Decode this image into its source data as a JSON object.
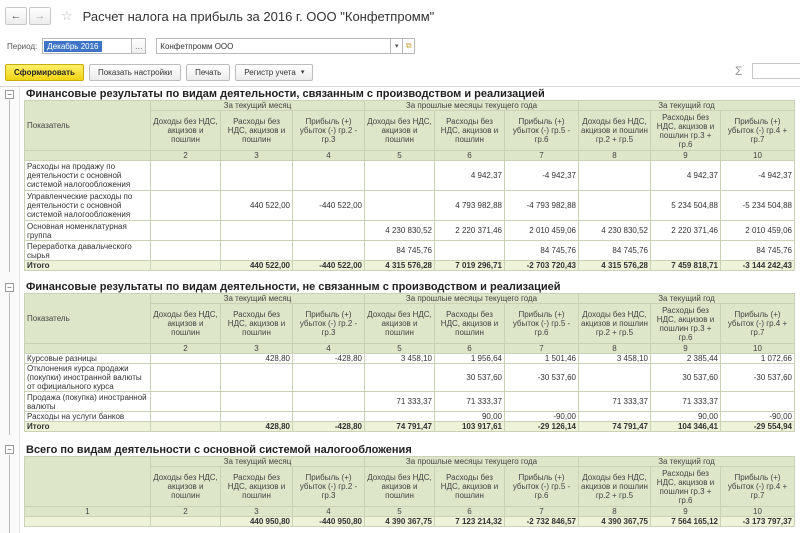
{
  "window": {
    "title": "Расчет налога на прибыль за 2016 г. ООО \"Конфетпромм\""
  },
  "filters": {
    "period_label": "Период:",
    "period_value": "Декабрь 2016",
    "organization_value": "Конфетпромм ООО"
  },
  "toolbar": {
    "generate": "Сформировать",
    "show_settings": "Показать настройки",
    "print": "Печать",
    "register": "Регистр учета",
    "sum_symbol": "Σ"
  },
  "columns": {
    "indicator": "Показатель",
    "current_month": "За текущий месяц",
    "past_months": "За прошлые месяцы текущего года",
    "current_year": "За текущий год",
    "income": "Доходы без НДС, акцизов и пошлин",
    "expenses": "Расходы без НДС, акцизов и пошлин",
    "profit_m": "Прибыль (+) убыток (-) гр.2 - гр.3",
    "profit_p": "Прибыль (+) убыток (-) гр.5 - гр.6",
    "income_y": "Доходы без НДС, акцизов и пошлин гр.2 + гр.5",
    "expenses_y": "Расходы без НДС, акцизов и пошлин гр.3 + гр.6",
    "profit_y": "Прибыль (+) убыток (-) гр.4 + гр.7",
    "nums": [
      "2",
      "3",
      "4",
      "5",
      "6",
      "7",
      "8",
      "9",
      "10"
    ],
    "num1": "1"
  },
  "section1": {
    "title": "Финансовые результаты по видам деятельности, связанным с производством и реализацией",
    "rows": [
      {
        "label": "Расходы на продажу по деятельности с основной системой налогообложения",
        "v": [
          "",
          "",
          "",
          "",
          "4 942,37",
          "-4 942,37",
          "",
          "4 942,37",
          "-4 942,37"
        ]
      },
      {
        "label": "Управленческие расходы по деятельности с основной системой налогообложения",
        "v": [
          "",
          "440 522,00",
          "-440 522,00",
          "",
          "4 793 982,88",
          "-4 793 982,88",
          "",
          "5 234 504,88",
          "-5 234 504,88"
        ]
      },
      {
        "label": "Основная номенклатурная группа",
        "v": [
          "",
          "",
          "",
          "4 230 830,52",
          "2 220 371,46",
          "2 010 459,06",
          "4 230 830,52",
          "2 220 371,46",
          "2 010 459,06"
        ]
      },
      {
        "label": "Переработка давальческого сырья",
        "v": [
          "",
          "",
          "",
          "84 745,76",
          "",
          "84 745,76",
          "84 745,76",
          "",
          "84 745,76"
        ]
      }
    ],
    "total": {
      "label": "Итого",
      "v": [
        "",
        "440 522,00",
        "-440 522,00",
        "4 315 576,28",
        "7 019 296,71",
        "-2 703 720,43",
        "4 315 576,28",
        "7 459 818,71",
        "-3 144 242,43"
      ]
    }
  },
  "section2": {
    "title": "Финансовые результаты по видам деятельности, не связанным с производством и реализацией",
    "rows": [
      {
        "label": "Курсовые разницы",
        "v": [
          "",
          "428,80",
          "-428,80",
          "3 458,10",
          "1 956,64",
          "1 501,46",
          "3 458,10",
          "2 385,44",
          "1 072,66"
        ]
      },
      {
        "label": "Отклонения курса продажи (покупки) иностранной валюты от официального курса",
        "v": [
          "",
          "",
          "",
          "",
          "30 537,60",
          "-30 537,60",
          "",
          "30 537,60",
          "-30 537,60"
        ]
      },
      {
        "label": "Продажа (покупка) иностранной валюты",
        "v": [
          "",
          "",
          "",
          "71 333,37",
          "71 333,37",
          "",
          "71 333,37",
          "71 333,37",
          ""
        ]
      },
      {
        "label": "Расходы на услуги банков",
        "v": [
          "",
          "",
          "",
          "",
          "90,00",
          "-90,00",
          "",
          "90,00",
          "-90,00"
        ]
      }
    ],
    "total": {
      "label": "Итого",
      "v": [
        "",
        "428,80",
        "-428,80",
        "74 791,47",
        "103 917,61",
        "-29 126,14",
        "74 791,47",
        "104 346,41",
        "-29 554,94"
      ]
    }
  },
  "section3": {
    "title": "Всего по видам деятельности с основной системой налогообложения",
    "total": {
      "label": "",
      "v": [
        "",
        "440 950,80",
        "-440 950,80",
        "4 390 367,75",
        "7 123 214,32",
        "-2 732 846,57",
        "4 390 367,75",
        "7 564 165,12",
        "-3 173 797,37"
      ]
    }
  }
}
